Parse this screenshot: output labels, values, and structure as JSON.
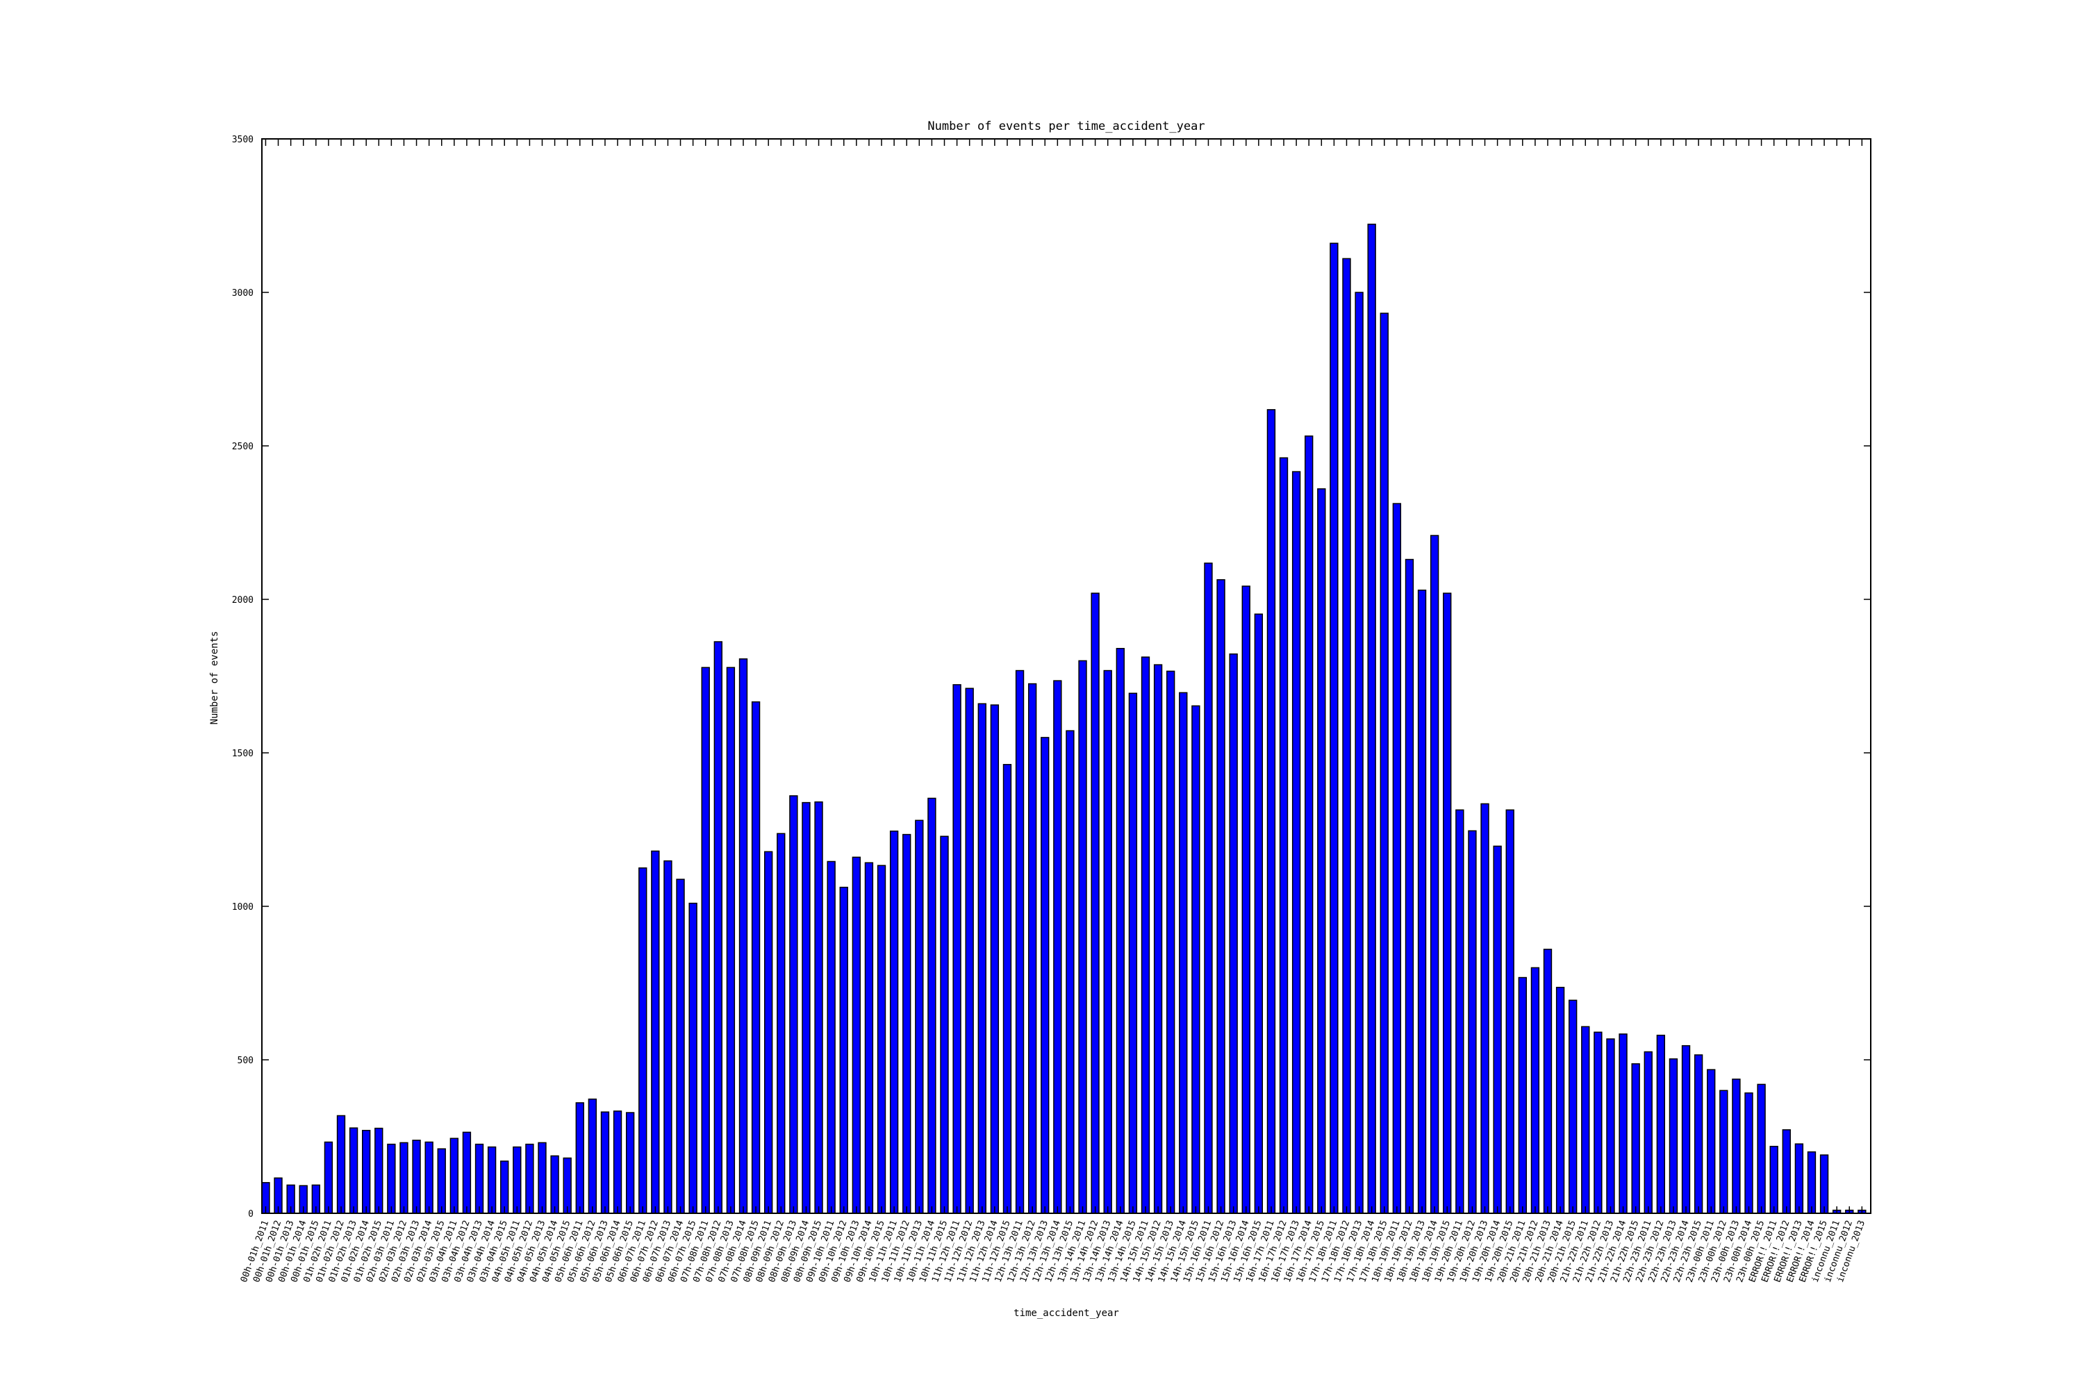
{
  "chart_data": {
    "type": "bar",
    "title": "Number of events per time_accident_year",
    "xlabel": "time_accident_year",
    "ylabel": "Number of events",
    "ylim": [
      0,
      3500
    ],
    "yticks": [
      0,
      500,
      1000,
      1500,
      2000,
      2500,
      3000,
      3500
    ],
    "grid": false,
    "legend": "none",
    "bar_color": "#0000ff",
    "categories": [
      "00h-01h_2011",
      "00h-01h_2012",
      "00h-01h_2013",
      "00h-01h_2014",
      "00h-01h_2015",
      "01h-02h_2011",
      "01h-02h_2012",
      "01h-02h_2013",
      "01h-02h_2014",
      "01h-02h_2015",
      "02h-03h_2011",
      "02h-03h_2012",
      "02h-03h_2013",
      "02h-03h_2014",
      "02h-03h_2015",
      "03h-04h_2011",
      "03h-04h_2012",
      "03h-04h_2013",
      "03h-04h_2014",
      "03h-04h_2015",
      "04h-05h_2011",
      "04h-05h_2012",
      "04h-05h_2013",
      "04h-05h_2014",
      "04h-05h_2015",
      "05h-06h_2011",
      "05h-06h_2012",
      "05h-06h_2013",
      "05h-06h_2014",
      "05h-06h_2015",
      "06h-07h_2011",
      "06h-07h_2012",
      "06h-07h_2013",
      "06h-07h_2014",
      "06h-07h_2015",
      "07h-08h_2011",
      "07h-08h_2012",
      "07h-08h_2013",
      "07h-08h_2014",
      "07h-08h_2015",
      "08h-09h_2011",
      "08h-09h_2012",
      "08h-09h_2013",
      "08h-09h_2014",
      "08h-09h_2015",
      "09h-10h_2011",
      "09h-10h_2012",
      "09h-10h_2013",
      "09h-10h_2014",
      "09h-10h_2015",
      "10h-11h_2011",
      "10h-11h_2012",
      "10h-11h_2013",
      "10h-11h_2014",
      "10h-11h_2015",
      "11h-12h_2011",
      "11h-12h_2012",
      "11h-12h_2013",
      "11h-12h_2014",
      "11h-12h_2015",
      "12h-13h_2011",
      "12h-13h_2012",
      "12h-13h_2013",
      "12h-13h_2014",
      "12h-13h_2015",
      "13h-14h_2011",
      "13h-14h_2012",
      "13h-14h_2013",
      "13h-14h_2014",
      "13h-14h_2015",
      "14h-15h_2011",
      "14h-15h_2012",
      "14h-15h_2013",
      "14h-15h_2014",
      "14h-15h_2015",
      "15h-16h_2011",
      "15h-16h_2012",
      "15h-16h_2013",
      "15h-16h_2014",
      "15h-16h_2015",
      "16h-17h_2011",
      "16h-17h_2012",
      "16h-17h_2013",
      "16h-17h_2014",
      "16h-17h_2015",
      "17h-18h_2011",
      "17h-18h_2012",
      "17h-18h_2013",
      "17h-18h_2014",
      "17h-18h_2015",
      "18h-19h_2011",
      "18h-19h_2012",
      "18h-19h_2013",
      "18h-19h_2014",
      "18h-19h_2015",
      "19h-20h_2011",
      "19h-20h_2012",
      "19h-20h_2013",
      "19h-20h_2014",
      "19h-20h_2015",
      "20h-21h_2011",
      "20h-21h_2012",
      "20h-21h_2013",
      "20h-21h_2014",
      "20h-21h_2015",
      "21h-22h_2011",
      "21h-22h_2012",
      "21h-22h_2013",
      "21h-22h_2014",
      "21h-22h_2015",
      "22h-23h_2011",
      "22h-23h_2012",
      "22h-23h_2013",
      "22h-23h_2014",
      "22h-23h_2015",
      "23h-00h_2011",
      "23h-00h_2012",
      "23h-00h_2013",
      "23h-00h_2014",
      "23h-00h_2015",
      "ERROR!!_2011",
      "ERROR!!_2012",
      "ERROR!!_2013",
      "ERROR!!_2014",
      "ERROR!!_2015",
      "inconnu_2011",
      "inconnu_2012",
      "inconnu_2013"
    ],
    "values": [
      100,
      115,
      92,
      90,
      92,
      232,
      318,
      278,
      270,
      277,
      225,
      230,
      238,
      232,
      210,
      244,
      264,
      225,
      216,
      170,
      216,
      225,
      230,
      187,
      180,
      360,
      372,
      330,
      333,
      328,
      1125,
      1180,
      1148,
      1088,
      1010,
      1778,
      1862,
      1778,
      1806,
      1666,
      1178,
      1237,
      1360,
      1338,
      1340,
      1146,
      1062,
      1160,
      1142,
      1133,
      1245,
      1234,
      1280,
      1352,
      1228,
      1722,
      1710,
      1660,
      1656,
      1462,
      1768,
      1725,
      1550,
      1735,
      1572,
      1800,
      2020,
      1768,
      1840,
      1694,
      1812,
      1787,
      1766,
      1696,
      1653,
      2118,
      2064,
      1822,
      2043,
      1952,
      2618,
      2461,
      2416,
      2532,
      2360,
      3160,
      3110,
      3000,
      3222,
      2932,
      2312,
      2130,
      2030,
      2208,
      2020,
      1314,
      1246,
      1334,
      1196,
      1314,
      768,
      800,
      860,
      736,
      694,
      608,
      590,
      568,
      584,
      487,
      526,
      580,
      503,
      546,
      516,
      468,
      400,
      437,
      392,
      420,
      218,
      272,
      226,
      200,
      190,
      10,
      10,
      10
    ]
  }
}
